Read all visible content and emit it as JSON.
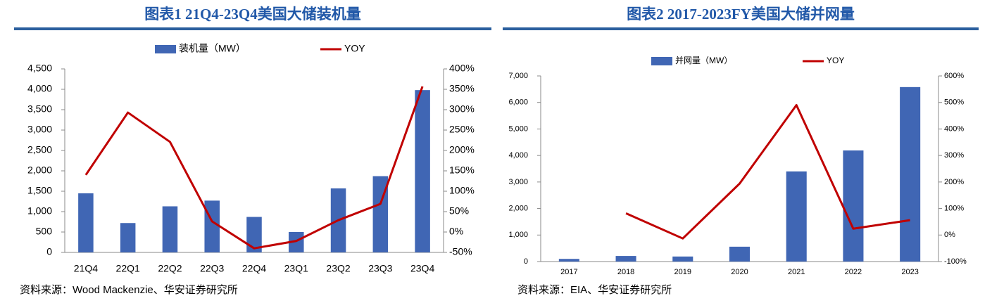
{
  "chart_data": [
    {
      "type": "combo",
      "title": "图表1 21Q4-23Q4美国大储装机量",
      "source": "资料来源：Wood Mackenzie、华安证券研究所",
      "categories": [
        "21Q4",
        "22Q1",
        "22Q2",
        "22Q3",
        "22Q4",
        "23Q1",
        "23Q2",
        "23Q3",
        "23Q4"
      ],
      "series": [
        {
          "name": "装机量（MW）",
          "kind": "bar",
          "color": "#4066b4",
          "values": [
            1450,
            720,
            1130,
            1270,
            870,
            500,
            1570,
            1870,
            3980
          ]
        },
        {
          "name": "YOY",
          "kind": "line",
          "axis": "y2",
          "color": "#c00000",
          "values": [
            140,
            293,
            221,
            26,
            -40,
            -22,
            29,
            69,
            357
          ]
        }
      ],
      "ylim": [
        0,
        4500
      ],
      "yticks": [
        0,
        500,
        {
          "value": 1000,
          "label": "1,000"
        },
        {
          "value": 1500,
          "label": "1,500"
        },
        {
          "value": 2000,
          "label": "2,000"
        },
        {
          "value": 2500,
          "label": "2,500"
        },
        {
          "value": 3000,
          "label": "3,000"
        },
        {
          "value": 3500,
          "label": "3,500"
        },
        {
          "value": 4000,
          "label": "4,000"
        },
        {
          "value": 4500,
          "label": "4,500"
        }
      ],
      "y2lim": [
        -50,
        400
      ],
      "y2ticks": [
        {
          "value": -50,
          "label": "-50%"
        },
        {
          "value": 0,
          "label": "0%"
        },
        {
          "value": 50,
          "label": "50%"
        },
        {
          "value": 100,
          "label": "100%"
        },
        {
          "value": 150,
          "label": "150%"
        },
        {
          "value": 200,
          "label": "200%"
        },
        {
          "value": 250,
          "label": "250%"
        },
        {
          "value": 300,
          "label": "300%"
        },
        {
          "value": 350,
          "label": "350%"
        },
        {
          "value": 400,
          "label": "400%"
        }
      ],
      "grid": false
    },
    {
      "type": "combo",
      "title": "图表2 2017-2023FY美国大储并网量",
      "source": "资料来源：EIA、华安证券研究所",
      "categories": [
        "2017",
        "2018",
        "2019",
        "2020",
        "2021",
        "2022",
        "2023"
      ],
      "series": [
        {
          "name": "并网量（MW）",
          "kind": "bar",
          "color": "#4066b4",
          "values": [
            100,
            210,
            190,
            560,
            3400,
            4190,
            6580
          ]
        },
        {
          "name": "YOY",
          "kind": "line",
          "axis": "y2",
          "color": "#c00000",
          "values": [
            null,
            82,
            -13,
            194,
            490,
            24,
            56
          ]
        }
      ],
      "ylim": [
        0,
        7000
      ],
      "yticks": [
        0,
        {
          "value": 1000,
          "label": "1,000"
        },
        {
          "value": 2000,
          "label": "2,000"
        },
        {
          "value": 3000,
          "label": "3,000"
        },
        {
          "value": 4000,
          "label": "4,000"
        },
        {
          "value": 5000,
          "label": "5,000"
        },
        {
          "value": 6000,
          "label": "6,000"
        },
        {
          "value": 7000,
          "label": "7,000"
        }
      ],
      "y2lim": [
        -100,
        600
      ],
      "y2ticks": [
        {
          "value": -100,
          "label": "-100%"
        },
        {
          "value": 0,
          "label": "0%"
        },
        {
          "value": 100,
          "label": "100%"
        },
        {
          "value": 200,
          "label": "200%"
        },
        {
          "value": 300,
          "label": "300%"
        },
        {
          "value": 400,
          "label": "400%"
        },
        {
          "value": 500,
          "label": "500%"
        },
        {
          "value": 600,
          "label": "600%"
        }
      ],
      "grid": false
    }
  ]
}
